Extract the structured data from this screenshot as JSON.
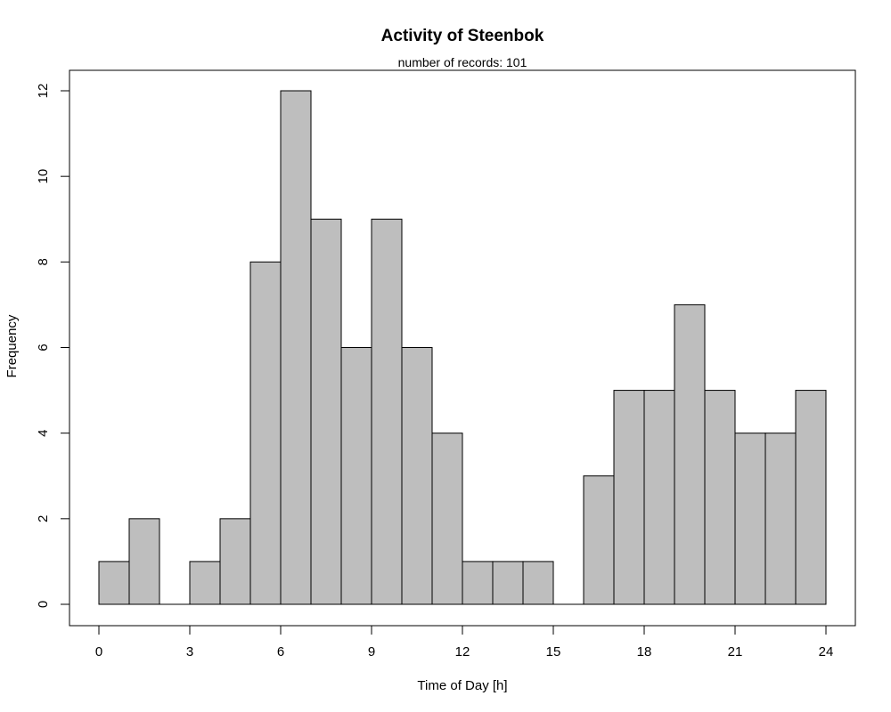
{
  "chart_data": {
    "type": "bar",
    "title": "Activity of Steenbok",
    "subtitle": "number of records: 101",
    "xlabel": "Time of Day [h]",
    "ylabel": "Frequency",
    "xlim": [
      0,
      24
    ],
    "ylim": [
      0,
      12
    ],
    "x_ticks": [
      0,
      3,
      6,
      9,
      12,
      15,
      18,
      21,
      24
    ],
    "y_ticks": [
      0,
      2,
      4,
      6,
      8,
      10,
      12
    ],
    "bin_edges": [
      0,
      1,
      2,
      3,
      4,
      5,
      6,
      7,
      8,
      9,
      10,
      11,
      12,
      13,
      14,
      15,
      16,
      17,
      18,
      19,
      20,
      21,
      22,
      23,
      24
    ],
    "values": [
      1,
      2,
      0,
      1,
      2,
      8,
      12,
      9,
      6,
      9,
      6,
      4,
      1,
      1,
      1,
      0,
      3,
      5,
      5,
      7,
      5,
      4,
      4,
      5
    ],
    "bar_color": "#bebebe",
    "grid": false,
    "legend": null
  }
}
